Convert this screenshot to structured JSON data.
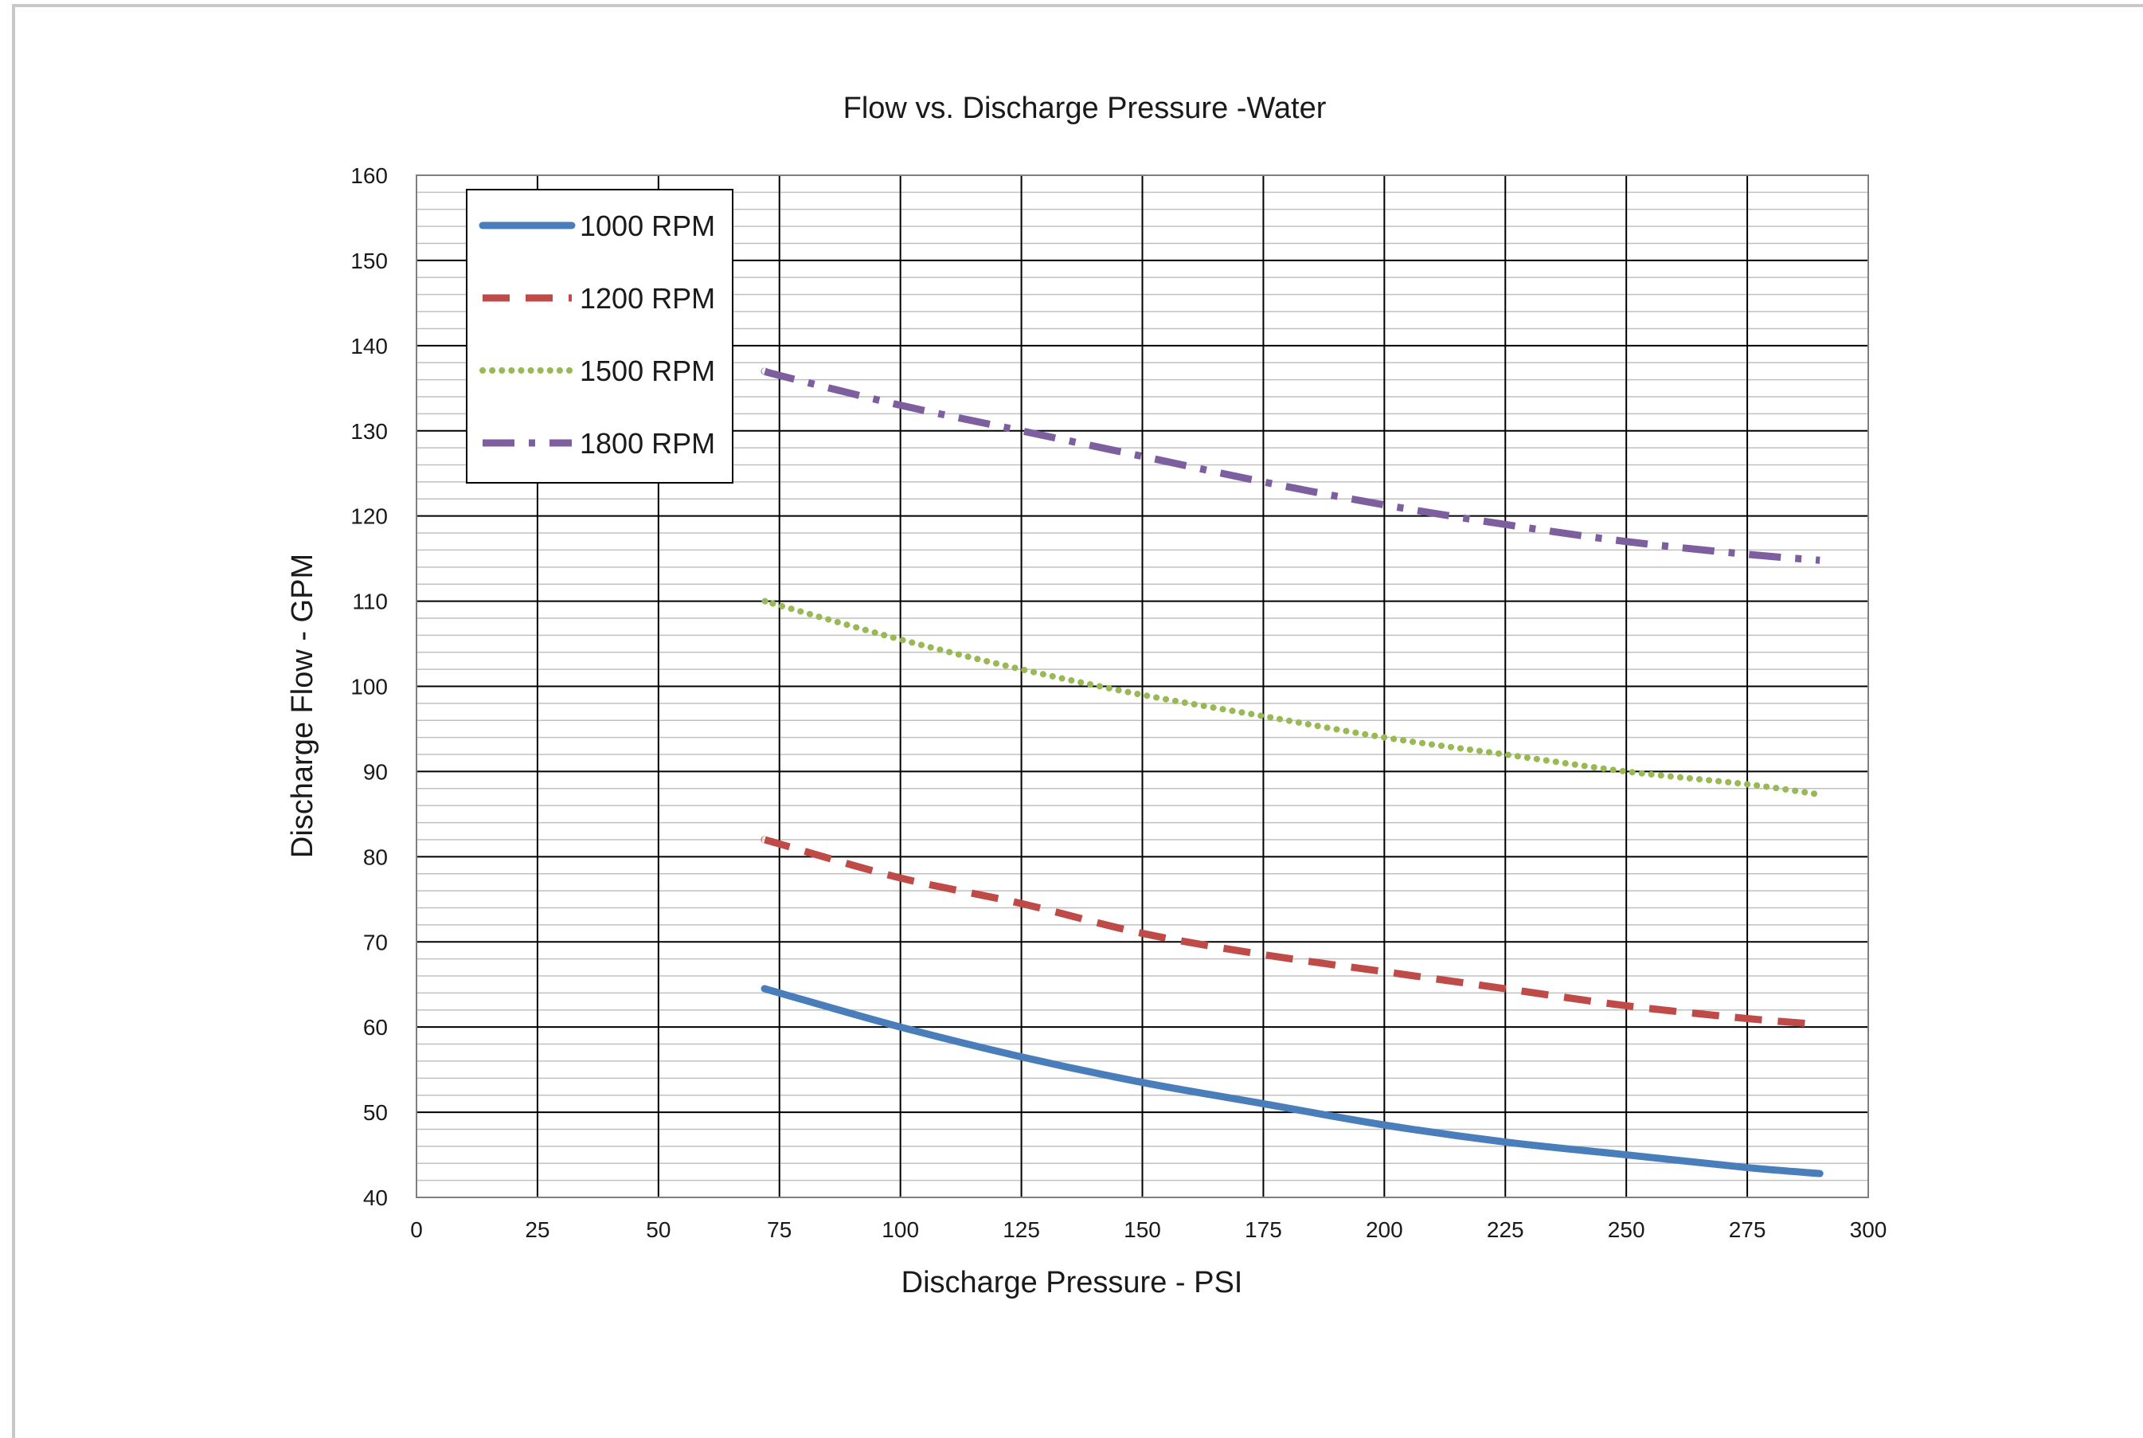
{
  "chart_data": {
    "type": "line",
    "title": "Flow vs. Discharge Pressure -Water",
    "xlabel": "Discharge Pressure - PSI",
    "ylabel": "Discharge Flow - GPM",
    "xlim": [
      0,
      300
    ],
    "ylim": [
      40,
      160
    ],
    "x_ticks": [
      "0",
      "25",
      "50",
      "75",
      "100",
      "125",
      "150",
      "175",
      "200",
      "225",
      "250",
      "275",
      "300"
    ],
    "y_ticks": [
      "40",
      "50",
      "60",
      "70",
      "80",
      "90",
      "100",
      "110",
      "120",
      "130",
      "140",
      "150",
      "160"
    ],
    "grid": {
      "major": true,
      "minor": true
    },
    "legend": {
      "placement": "top-left"
    },
    "series": [
      {
        "name": "1000 RPM",
        "color": "#4a7ebb",
        "style": "solid",
        "x": [
          72,
          75,
          100,
          125,
          150,
          175,
          200,
          225,
          250,
          275,
          290
        ],
        "y": [
          64.5,
          64,
          60,
          56.5,
          53.5,
          51,
          48.5,
          46.5,
          45,
          43.5,
          42.8
        ]
      },
      {
        "name": "1200 RPM",
        "color": "#be4b48",
        "style": "dashed",
        "x": [
          72,
          75,
          100,
          125,
          150,
          175,
          200,
          225,
          250,
          275,
          290
        ],
        "y": [
          82,
          81.5,
          77.5,
          74.5,
          71,
          68.5,
          66.5,
          64.5,
          62.5,
          61,
          60.3
        ]
      },
      {
        "name": "1500 RPM",
        "color": "#98b954",
        "style": "dotted",
        "x": [
          72,
          75,
          100,
          125,
          150,
          175,
          200,
          225,
          250,
          275,
          290
        ],
        "y": [
          110,
          109.5,
          105.5,
          102,
          99,
          96.5,
          94,
          92,
          90,
          88.5,
          87.3
        ]
      },
      {
        "name": "1800 RPM",
        "color": "#7d5fa0",
        "style": "dash-dot",
        "x": [
          72,
          75,
          100,
          125,
          150,
          175,
          200,
          225,
          250,
          275,
          290
        ],
        "y": [
          137,
          136.5,
          133,
          130,
          127,
          124,
          121.3,
          119,
          117,
          115.5,
          114.8
        ]
      }
    ]
  }
}
